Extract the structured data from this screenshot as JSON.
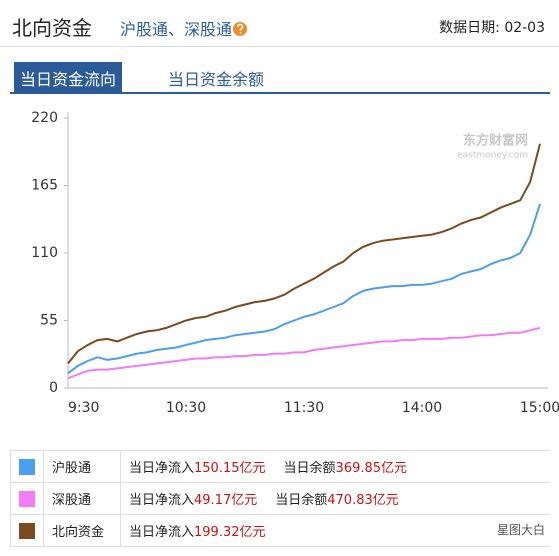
{
  "header": {
    "title": "北向资金",
    "subtitle": "沪股通、深股通",
    "date_label": "数据日期:",
    "date": "02-03"
  },
  "tabs": [
    "当日资金流向",
    "当日资金余额"
  ],
  "watermark": {
    "brand": "东方财富网",
    "site": "eastmoney.com"
  },
  "chart_data": {
    "type": "line",
    "categories": [
      "9:30",
      null,
      null,
      null,
      null,
      null,
      null,
      null,
      null,
      null,
      null,
      null,
      "10:30",
      null,
      null,
      null,
      null,
      null,
      null,
      null,
      null,
      null,
      null,
      null,
      "11:30",
      null,
      null,
      null,
      null,
      null,
      null,
      null,
      null,
      null,
      null,
      null,
      "14:00",
      null,
      null,
      null,
      null,
      null,
      null,
      null,
      null,
      null,
      null,
      null,
      "15:00"
    ],
    "ylim": [
      0,
      220
    ],
    "yticks": [
      0,
      55,
      110,
      165,
      220
    ],
    "grid": false,
    "series": [
      {
        "name": "沪股通",
        "color": "#4a9ff0",
        "values": [
          12,
          18,
          22,
          25,
          23,
          24,
          26,
          28,
          29,
          31,
          32,
          33,
          35,
          37,
          39,
          40,
          41,
          43,
          44,
          45,
          46,
          48,
          52,
          55,
          58,
          60,
          63,
          66,
          69,
          75,
          79,
          81,
          82,
          83,
          83,
          84,
          84,
          85,
          87,
          89,
          93,
          95,
          97,
          101,
          104,
          106,
          110,
          125,
          150
        ]
      },
      {
        "name": "深股通",
        "color": "#f27cf2",
        "values": [
          8,
          11,
          14,
          15,
          15,
          16,
          17,
          18,
          19,
          20,
          21,
          22,
          23,
          24,
          24,
          25,
          25,
          26,
          26,
          27,
          27,
          28,
          28,
          29,
          29,
          31,
          32,
          33,
          34,
          35,
          36,
          37,
          38,
          38,
          39,
          39,
          40,
          40,
          40,
          41,
          41,
          42,
          43,
          43,
          44,
          45,
          45,
          47,
          49
        ]
      },
      {
        "name": "北向资金",
        "color": "#7b4a1e",
        "values": [
          20,
          30,
          35,
          39,
          40,
          38,
          41,
          44,
          46,
          47,
          49,
          52,
          55,
          57,
          58,
          61,
          63,
          66,
          68,
          70,
          71,
          73,
          76,
          81,
          85,
          89,
          94,
          99,
          103,
          110,
          115,
          118,
          120,
          121,
          122,
          123,
          124,
          125,
          127,
          130,
          134,
          137,
          139,
          143,
          147,
          150,
          153,
          168,
          199
        ]
      }
    ]
  },
  "legend_table": {
    "rows": [
      {
        "inflow_label": "当日净流入",
        "inflow": "150.15",
        "inflow_unit": "亿元",
        "balance_label": "当日余额",
        "balance": "369.85",
        "balance_unit": "亿元"
      },
      {
        "inflow_label": "当日净流入",
        "inflow": "49.17",
        "inflow_unit": "亿元",
        "balance_label": "当日余额",
        "balance": "470.83",
        "balance_unit": "亿元"
      },
      {
        "inflow_label": "当日净流入",
        "inflow": "199.32",
        "inflow_unit": "亿元"
      }
    ]
  },
  "footer_watermark": "星图大白"
}
